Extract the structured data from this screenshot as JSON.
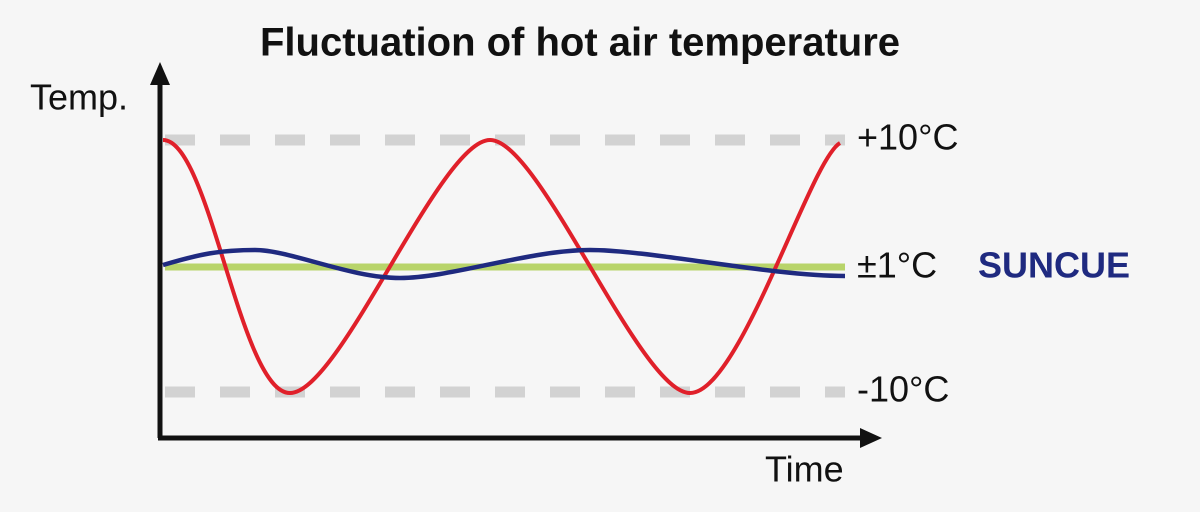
{
  "title": "Fluctuation of hot air temperature",
  "y_axis_label": "Temp.",
  "x_axis_label": "Time",
  "levels": {
    "upper": "+10°C",
    "middle": "±1°C",
    "lower": "-10°C"
  },
  "brand": "SUNCUE"
}
